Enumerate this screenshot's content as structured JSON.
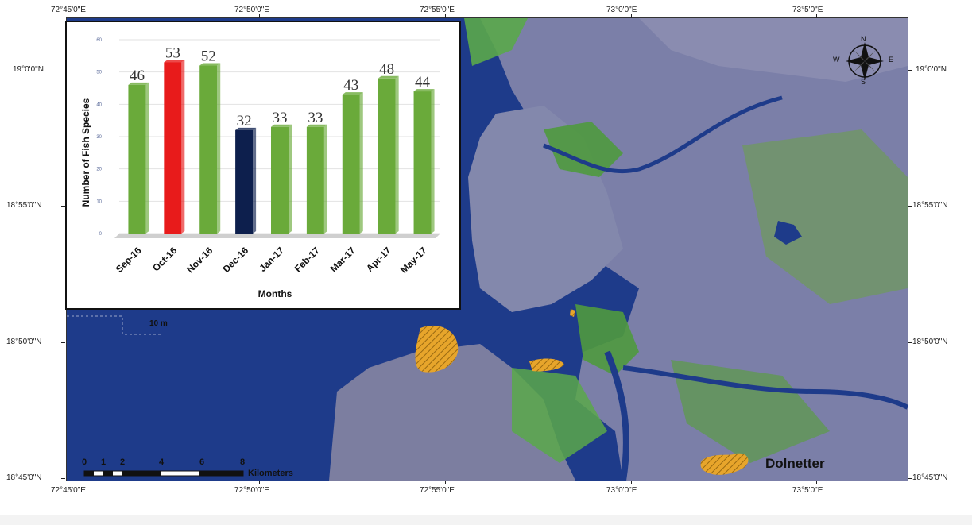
{
  "map": {
    "top_coords": [
      "72°45'0\"E",
      "72°50'0\"E",
      "72°55'0\"E",
      "73°0'0\"E",
      "73°5'0\"E"
    ],
    "bottom_coords": [
      "72°45'0\"E",
      "72°50'0\"E",
      "72°55'0\"E",
      "73°0'0\"E",
      "73°5'0\"E"
    ],
    "left_coords": [
      "19°0'0\"N",
      "18°55'0\"N",
      "18°50'0\"N",
      "18°45'0\"N"
    ],
    "right_coords": [
      "19°0'0\"N",
      "18°55'0\"N",
      "18°50'0\"N",
      "18°45'0\"N"
    ],
    "place_label": "Dolnetter",
    "depth_label": "10 m",
    "compass": {
      "n": "N",
      "s": "S",
      "e": "E",
      "w": "W"
    },
    "scale_bar": {
      "ticks": [
        "0",
        "1",
        "2",
        "4",
        "6",
        "8"
      ],
      "unit": "Kilometers"
    },
    "colors": {
      "sea": "#1e3b8a",
      "land": "#7b7fa8",
      "vegetation": "#4f9a3e",
      "hatch": "#e7a52b"
    }
  },
  "chart_data": {
    "type": "bar",
    "categories": [
      "Sep-16",
      "Oct-16",
      "Nov-16",
      "Dec-16",
      "Jan-17",
      "Feb-17",
      "Mar-17",
      "Apr-17",
      "May-17"
    ],
    "values": [
      46,
      53,
      52,
      32,
      33,
      33,
      43,
      48,
      44
    ],
    "data_labels": [
      "46",
      "53",
      "52",
      "32",
      "33",
      "33",
      "43",
      "48",
      "44"
    ],
    "bar_colors": [
      "#6aaa3a",
      "#e81b1b",
      "#6aaa3a",
      "#0d1f4d",
      "#6aaa3a",
      "#6aaa3a",
      "#6aaa3a",
      "#6aaa3a",
      "#6aaa3a"
    ],
    "xlabel": "Months",
    "ylabel": "Number of Fish Species",
    "ylim": [
      0,
      60
    ],
    "yticks": [
      "0",
      "10",
      "20",
      "30",
      "40",
      "50",
      "60"
    ],
    "grid": true,
    "legend": "none"
  }
}
